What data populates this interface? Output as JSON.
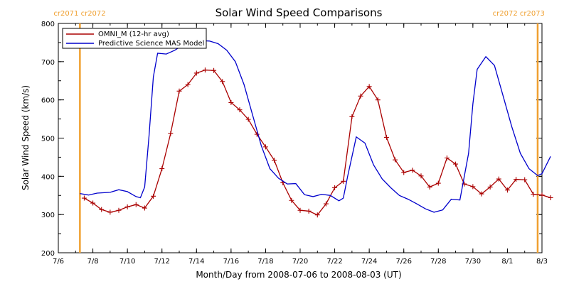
{
  "chart_data": {
    "type": "line",
    "title": "Solar Wind Speed Comparisons",
    "xlabel": "Month/Day from 2008-07-06 to 2008-08-03 (UT)",
    "ylabel": "Solar Wind Speed (km/s)",
    "xlim": [
      "2008-07-06",
      "2008-08-03"
    ],
    "ylim": [
      200,
      800
    ],
    "x_ticks": [
      {
        "date": "2008-07-06",
        "label": "7/6"
      },
      {
        "date": "2008-07-08",
        "label": "7/8"
      },
      {
        "date": "2008-07-10",
        "label": "7/10"
      },
      {
        "date": "2008-07-12",
        "label": "7/12"
      },
      {
        "date": "2008-07-14",
        "label": "7/14"
      },
      {
        "date": "2008-07-16",
        "label": "7/16"
      },
      {
        "date": "2008-07-18",
        "label": "7/18"
      },
      {
        "date": "2008-07-20",
        "label": "7/20"
      },
      {
        "date": "2008-07-22",
        "label": "7/22"
      },
      {
        "date": "2008-07-24",
        "label": "7/24"
      },
      {
        "date": "2008-07-26",
        "label": "7/26"
      },
      {
        "date": "2008-07-28",
        "label": "7/28"
      },
      {
        "date": "2008-07-30",
        "label": "7/30"
      },
      {
        "date": "2008-08-01",
        "label": "8/1"
      },
      {
        "date": "2008-08-03",
        "label": "8/3"
      }
    ],
    "y_ticks": [
      200,
      300,
      400,
      500,
      600,
      700,
      800
    ],
    "legend_position": "top-left",
    "markers": [
      {
        "date": "2008-07-07 06:00",
        "labels": [
          "cr2071",
          "cr2072"
        ],
        "color": "#f0a030"
      },
      {
        "date": "2008-08-02 18:00",
        "labels": [
          "cr2072",
          "cr2073"
        ],
        "color": "#f0a030"
      }
    ],
    "series": [
      {
        "name": "OMNI_M (12-hr avg)",
        "color": "#aa0000",
        "marker": "plus",
        "points": [
          [
            "2008-07-07 12:00",
            343
          ],
          [
            "2008-07-08 00:00",
            330
          ],
          [
            "2008-07-08 12:00",
            313
          ],
          [
            "2008-07-09 00:00",
            306
          ],
          [
            "2008-07-09 12:00",
            311
          ],
          [
            "2008-07-10 00:00",
            320
          ],
          [
            "2008-07-10 12:00",
            326
          ],
          [
            "2008-07-11 00:00",
            317
          ],
          [
            "2008-07-11 12:00",
            348
          ],
          [
            "2008-07-12 00:00",
            420
          ],
          [
            "2008-07-12 12:00",
            512
          ],
          [
            "2008-07-13 00:00",
            623
          ],
          [
            "2008-07-13 12:00",
            640
          ],
          [
            "2008-07-14 00:00",
            670
          ],
          [
            "2008-07-14 12:00",
            678
          ],
          [
            "2008-07-15 00:00",
            677
          ],
          [
            "2008-07-15 12:00",
            648
          ],
          [
            "2008-07-16 00:00",
            593
          ],
          [
            "2008-07-16 12:00",
            574
          ],
          [
            "2008-07-17 00:00",
            549
          ],
          [
            "2008-07-17 12:00",
            510
          ],
          [
            "2008-07-18 00:00",
            477
          ],
          [
            "2008-07-18 12:00",
            442
          ],
          [
            "2008-07-19 00:00",
            383
          ],
          [
            "2008-07-19 12:00",
            337
          ],
          [
            "2008-07-20 00:00",
            311
          ],
          [
            "2008-07-20 12:00",
            309
          ],
          [
            "2008-07-21 00:00",
            299
          ],
          [
            "2008-07-21 12:00",
            328
          ],
          [
            "2008-07-22 00:00",
            370
          ],
          [
            "2008-07-22 12:00",
            387
          ],
          [
            "2008-07-23 00:00",
            556
          ],
          [
            "2008-07-23 12:00",
            610
          ],
          [
            "2008-07-24 00:00",
            635
          ],
          [
            "2008-07-24 12:00",
            600
          ],
          [
            "2008-07-25 00:00",
            502
          ],
          [
            "2008-07-25 12:00",
            443
          ],
          [
            "2008-07-26 00:00",
            410
          ],
          [
            "2008-07-26 12:00",
            416
          ],
          [
            "2008-07-27 00:00",
            401
          ],
          [
            "2008-07-27 12:00",
            372
          ],
          [
            "2008-07-28 00:00",
            382
          ],
          [
            "2008-07-28 12:00",
            448
          ],
          [
            "2008-07-29 00:00",
            432
          ],
          [
            "2008-07-29 12:00",
            380
          ],
          [
            "2008-07-30 00:00",
            373
          ],
          [
            "2008-07-30 12:00",
            354
          ],
          [
            "2008-07-31 00:00",
            372
          ],
          [
            "2008-07-31 12:00",
            393
          ],
          [
            "2008-08-01 00:00",
            364
          ],
          [
            "2008-08-01 12:00",
            392
          ],
          [
            "2008-08-02 00:00",
            391
          ],
          [
            "2008-08-02 12:00",
            353
          ],
          [
            "2008-08-03 00:00",
            351
          ],
          [
            "2008-08-03 12:00",
            344
          ]
        ]
      },
      {
        "name": "Predictive Science MAS Model",
        "color": "#0000cc",
        "marker": "none",
        "points": [
          [
            "2008-07-07 06:00",
            355
          ],
          [
            "2008-07-07 18:00",
            351
          ],
          [
            "2008-07-08 06:00",
            356
          ],
          [
            "2008-07-09 00:00",
            358
          ],
          [
            "2008-07-09 12:00",
            365
          ],
          [
            "2008-07-10 00:00",
            360
          ],
          [
            "2008-07-10 12:00",
            347
          ],
          [
            "2008-07-10 18:00",
            344
          ],
          [
            "2008-07-11 00:00",
            372
          ],
          [
            "2008-07-11 06:00",
            505
          ],
          [
            "2008-07-11 12:00",
            660
          ],
          [
            "2008-07-11 18:00",
            722
          ],
          [
            "2008-07-12 06:00",
            720
          ],
          [
            "2008-07-12 18:00",
            730
          ],
          [
            "2008-07-13 06:00",
            745
          ],
          [
            "2008-07-13 18:00",
            750
          ],
          [
            "2008-07-14 06:00",
            755
          ],
          [
            "2008-07-14 18:00",
            754
          ],
          [
            "2008-07-15 06:00",
            747
          ],
          [
            "2008-07-15 18:00",
            730
          ],
          [
            "2008-07-16 06:00",
            700
          ],
          [
            "2008-07-16 18:00",
            640
          ],
          [
            "2008-07-17 06:00",
            560
          ],
          [
            "2008-07-17 18:00",
            480
          ],
          [
            "2008-07-18 06:00",
            420
          ],
          [
            "2008-07-18 18:00",
            395
          ],
          [
            "2008-07-19 06:00",
            380
          ],
          [
            "2008-07-19 18:00",
            381
          ],
          [
            "2008-07-20 06:00",
            352
          ],
          [
            "2008-07-20 18:00",
            347
          ],
          [
            "2008-07-21 06:00",
            353
          ],
          [
            "2008-07-21 18:00",
            350
          ],
          [
            "2008-07-22 06:00",
            336
          ],
          [
            "2008-07-22 12:00",
            343
          ],
          [
            "2008-07-22 18:00",
            400
          ],
          [
            "2008-07-23 06:00",
            503
          ],
          [
            "2008-07-23 18:00",
            487
          ],
          [
            "2008-07-24 06:00",
            430
          ],
          [
            "2008-07-24 18:00",
            393
          ],
          [
            "2008-07-25 06:00",
            370
          ],
          [
            "2008-07-25 18:00",
            350
          ],
          [
            "2008-07-26 06:00",
            340
          ],
          [
            "2008-07-26 18:00",
            328
          ],
          [
            "2008-07-27 06:00",
            315
          ],
          [
            "2008-07-27 18:00",
            306
          ],
          [
            "2008-07-28 06:00",
            312
          ],
          [
            "2008-07-28 18:00",
            340
          ],
          [
            "2008-07-29 06:00",
            338
          ],
          [
            "2008-07-29 18:00",
            460
          ],
          [
            "2008-07-30 00:00",
            590
          ],
          [
            "2008-07-30 06:00",
            680
          ],
          [
            "2008-07-30 18:00",
            713
          ],
          [
            "2008-07-31 06:00",
            690
          ],
          [
            "2008-07-31 18:00",
            610
          ],
          [
            "2008-08-01 06:00",
            530
          ],
          [
            "2008-08-01 18:00",
            460
          ],
          [
            "2008-08-02 06:00",
            420
          ],
          [
            "2008-08-02 18:00",
            402
          ],
          [
            "2008-08-03 00:00",
            407
          ],
          [
            "2008-08-03 12:00",
            452
          ]
        ]
      }
    ]
  }
}
